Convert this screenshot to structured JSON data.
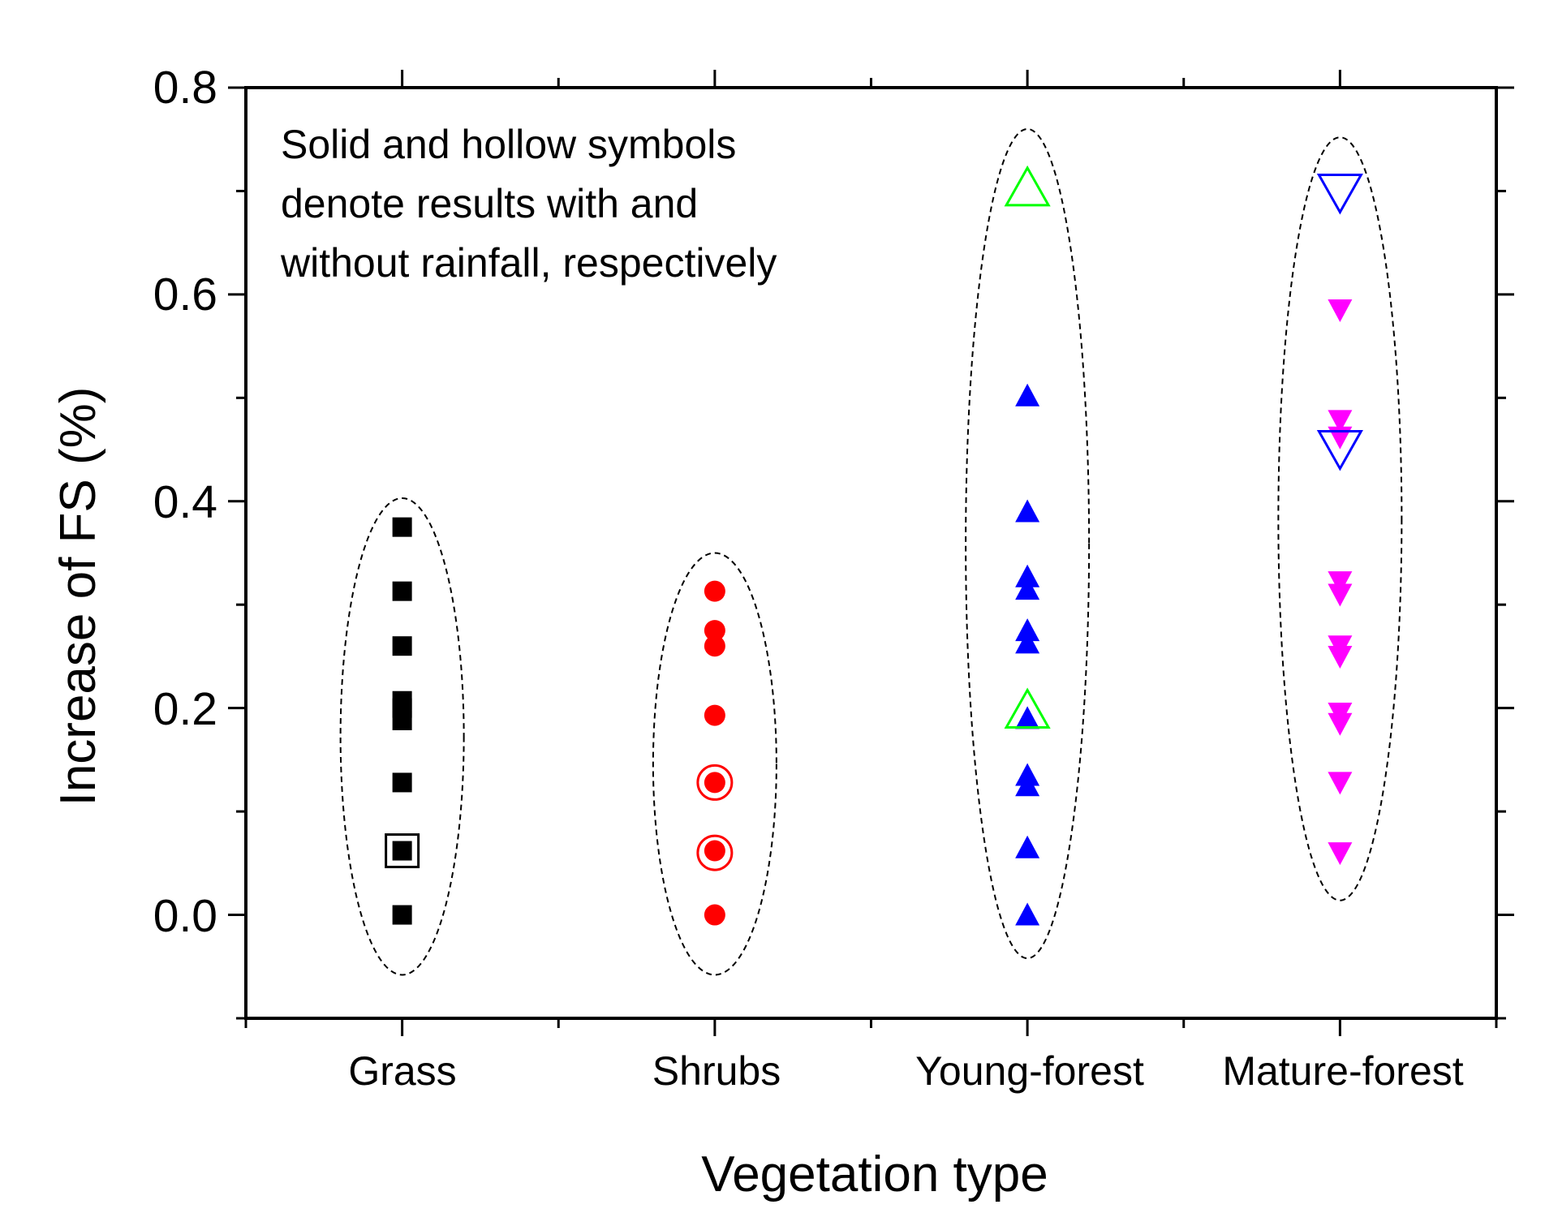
{
  "chart_data": {
    "type": "scatter",
    "title": "",
    "xlabel": "Vegetation type",
    "ylabel": "Increase of FS (%)",
    "ylim": [
      -0.1,
      0.8
    ],
    "yticks": [
      "0.0",
      "0.2",
      "0.4",
      "0.6",
      "0.8"
    ],
    "grid": false,
    "categories": [
      "Grass",
      "Shrubs",
      "Young-forest",
      "Mature-forest"
    ],
    "annotation": [
      "Solid and hollow symbols",
      "denote results with and",
      "without rainfall, respectively"
    ],
    "series": [
      {
        "name": "Grass",
        "category": "Grass",
        "marker": "square",
        "color": "#000000",
        "solid": [
          0.375,
          0.313,
          0.26,
          0.207,
          0.2,
          0.188,
          0.128,
          0.062,
          0.0
        ],
        "hollow": [
          0.062
        ],
        "hollow_color": "#000000"
      },
      {
        "name": "Shrubs",
        "category": "Shrubs",
        "marker": "circle",
        "color": "#ff0000",
        "solid": [
          0.313,
          0.275,
          0.26,
          0.193,
          0.128,
          0.062,
          0.0
        ],
        "hollow": [
          0.128,
          0.06
        ],
        "hollow_color": "#ff0000"
      },
      {
        "name": "Young-forest",
        "category": "Young-forest",
        "marker": "triangle-up",
        "color": "#0000ff",
        "solid": [
          0.502,
          0.39,
          0.327,
          0.315,
          0.275,
          0.263,
          0.19,
          0.135,
          0.125,
          0.065,
          0.0
        ],
        "hollow": [
          0.702,
          0.197
        ],
        "hollow_color": "#00ff00"
      },
      {
        "name": "Mature-forest",
        "category": "Mature-forest",
        "marker": "triangle-down",
        "color": "#ff00ff",
        "solid": [
          0.585,
          0.478,
          0.462,
          0.322,
          0.31,
          0.26,
          0.25,
          0.195,
          0.185,
          0.128,
          0.06
        ],
        "hollow": [
          0.7,
          0.452
        ],
        "hollow_color": "#0000ff"
      }
    ],
    "groups": [
      {
        "category": "Grass",
        "ymin": -0.058,
        "ymax": 0.403
      },
      {
        "category": "Shrubs",
        "ymin": -0.058,
        "ymax": 0.35
      },
      {
        "category": "Young-forest",
        "ymin": -0.042,
        "ymax": 0.76
      },
      {
        "category": "Mature-forest",
        "ymin": 0.014,
        "ymax": 0.752
      }
    ]
  }
}
